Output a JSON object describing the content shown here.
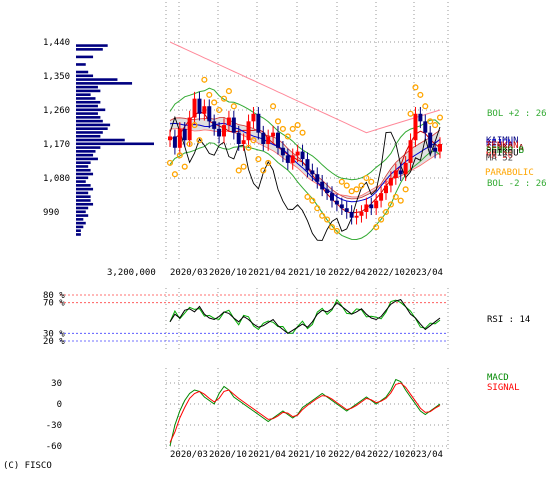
{
  "copyright": "(C) FISCO",
  "volume_scale_label": "3,200,000",
  "colors": {
    "candle_up": "#ff0000",
    "candle_down": "#000080",
    "volume_profile": "#000080",
    "cloud_fill": "#d8d8d8",
    "bollinger": "#33aa33",
    "moving_avg_short": "#cc0000",
    "moving_avg_mid": "#0000cc",
    "moving_avg_long": "#ff8899",
    "lagging_span": "#000000",
    "parabolic_sar": "#ffa500",
    "rsi": "#000000",
    "rsi_overlay": "#00aa00",
    "macd": "#008800",
    "signal": "#ff0000",
    "overbought_line": "#ff4444",
    "oversold_line": "#4444ff"
  },
  "chart_data": [
    {
      "type": "candlestick",
      "panel": "price",
      "x_ticks": [
        "2020/03",
        "2020/10",
        "2021/04",
        "2021/10",
        "2022/04",
        "2022/10",
        "2023/04"
      ],
      "y_ticks": [
        "1,440",
        "1,350",
        "1,260",
        "1,170",
        "1,080",
        "990"
      ],
      "ylim": [
        900,
        1480
      ],
      "grid": true,
      "legend": [
        {
          "label": "BOL +2 : 26",
          "color": "#33aa33"
        },
        {
          "label": "BOL -2 : 26",
          "color": "#33aa33"
        },
        {
          "label": "PARABOLIC",
          "color": "#ffa500"
        }
      ],
      "overlapping_label_fragments": [
        "KAIMUN",
        "KIJUN",
        "TENKAN",
        "SENKO A",
        "SENKO B",
        "CHIKOU",
        "MA 26",
        "MA 52"
      ],
      "close_series": [
        1190,
        1160,
        1210,
        1180,
        1240,
        1290,
        1250,
        1270,
        1230,
        1210,
        1190,
        1220,
        1240,
        1200,
        1170,
        1180,
        1230,
        1250,
        1200,
        1170,
        1190,
        1200,
        1160,
        1140,
        1120,
        1140,
        1150,
        1130,
        1100,
        1090,
        1070,
        1050,
        1040,
        1020,
        1010,
        1000,
        990,
        975,
        980,
        990,
        1010,
        1000,
        1020,
        1040,
        1060,
        1080,
        1100,
        1090,
        1120,
        1180,
        1250,
        1230,
        1200,
        1160,
        1150,
        1170
      ],
      "volume_profile": {
        "price_levels": [
          1430,
          1420,
          1400,
          1380,
          1360,
          1350,
          1340,
          1330,
          1320,
          1310,
          1300,
          1290,
          1280,
          1270,
          1260,
          1250,
          1240,
          1230,
          1220,
          1210,
          1200,
          1190,
          1180,
          1170,
          1160,
          1150,
          1140,
          1130,
          1120,
          1110,
          1100,
          1090,
          1080,
          1070,
          1060,
          1050,
          1040,
          1030,
          1020,
          1010,
          1000,
          990,
          980,
          970,
          960,
          950,
          940,
          930
        ],
        "volumes": [
          1300000,
          1100000,
          700000,
          400000,
          500000,
          700000,
          1700000,
          2300000,
          900000,
          1000000,
          600000,
          800000,
          1000000,
          900000,
          1200000,
          900000,
          1000000,
          1100000,
          1400000,
          1300000,
          1100000,
          1000000,
          2000000,
          3200000,
          1000000,
          800000,
          700000,
          900000,
          600000,
          500000,
          600000,
          700000,
          500000,
          400000,
          600000,
          700000,
          500000,
          600000,
          600000,
          700000,
          500000,
          400000,
          500000,
          300000,
          400000,
          300000,
          200000,
          200000
        ]
      }
    },
    {
      "type": "line",
      "panel": "rsi",
      "y_ticks": [
        "80 %",
        "70 %",
        "30 %",
        "20 %"
      ],
      "ylim": [
        0,
        100
      ],
      "grid": true,
      "legend": [
        {
          "label": "RSI : 14",
          "color": "#000000"
        }
      ],
      "series": [
        {
          "name": "RSI : 14",
          "values": [
            45,
            55,
            50,
            60,
            62,
            58,
            65,
            55,
            50,
            48,
            52,
            58,
            56,
            50,
            45,
            52,
            48,
            42,
            38,
            40,
            44,
            48,
            40,
            35,
            30,
            34,
            38,
            42,
            38,
            45,
            55,
            60,
            58,
            62,
            70,
            65,
            60,
            55,
            58,
            62,
            55,
            50,
            48,
            52,
            60,
            68,
            72,
            74,
            65,
            55,
            50,
            42,
            35,
            40,
            45,
            50
          ]
        }
      ]
    },
    {
      "type": "line",
      "panel": "macd",
      "y_ticks": [
        "30",
        "0",
        "-30",
        "-60"
      ],
      "ylim": [
        -65,
        40
      ],
      "grid": true,
      "legend": [
        {
          "label": "MACD",
          "color": "#008800"
        },
        {
          "label": "SIGNAL",
          "color": "#ff0000"
        }
      ],
      "series": [
        {
          "name": "MACD",
          "values": [
            -60,
            -30,
            -10,
            5,
            15,
            20,
            18,
            10,
            5,
            0,
            15,
            25,
            20,
            10,
            5,
            0,
            -5,
            -10,
            -15,
            -20,
            -25,
            -20,
            -15,
            -10,
            -15,
            -20,
            -15,
            -5,
            0,
            5,
            10,
            15,
            10,
            5,
            0,
            -5,
            -10,
            -5,
            0,
            5,
            10,
            5,
            0,
            5,
            10,
            20,
            35,
            32,
            20,
            10,
            0,
            -10,
            -15,
            -10,
            -5,
            0
          ]
        },
        {
          "name": "SIGNAL",
          "values": [
            -55,
            -40,
            -20,
            -5,
            8,
            15,
            18,
            14,
            8,
            3,
            8,
            18,
            20,
            14,
            8,
            3,
            -2,
            -7,
            -12,
            -17,
            -22,
            -21,
            -17,
            -12,
            -13,
            -18,
            -16,
            -8,
            -2,
            3,
            8,
            12,
            11,
            7,
            2,
            -3,
            -8,
            -6,
            -2,
            3,
            8,
            6,
            2,
            4,
            8,
            16,
            28,
            30,
            24,
            14,
            4,
            -6,
            -12,
            -11,
            -6,
            -2
          ]
        }
      ]
    }
  ]
}
